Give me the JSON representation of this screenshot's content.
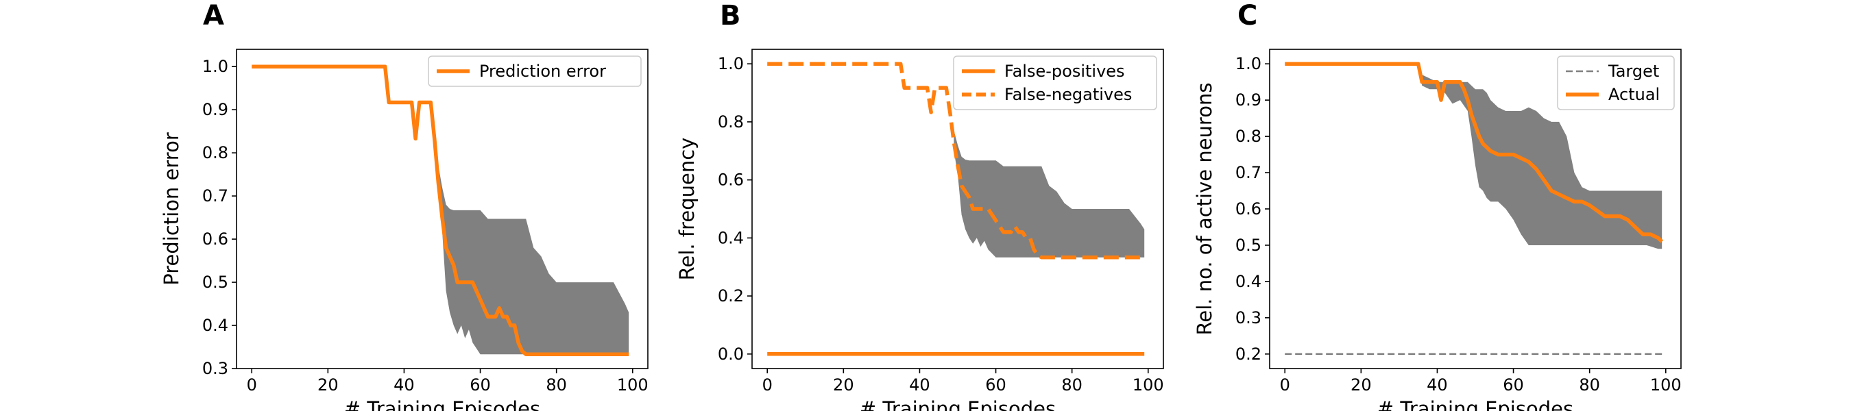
{
  "colors": {
    "line": "#ff7f0e",
    "band": "#808080",
    "target": "#808080",
    "legend_edge": "#cccccc"
  },
  "chart_data": [
    {
      "panel_label": "A",
      "type": "line",
      "xlabel": "# Training Episodes",
      "ylabel": "Prediction error",
      "xlim": [
        -4,
        104
      ],
      "ylim": [
        0.3,
        1.04
      ],
      "xticks": [
        "0",
        "20",
        "40",
        "60",
        "80",
        "100"
      ],
      "yticks": [
        "0.3",
        "0.4",
        "0.5",
        "0.6",
        "0.7",
        "0.8",
        "0.9",
        "1.0"
      ],
      "legend_position": "top-right",
      "band": {
        "x": [
          49,
          50,
          51,
          52,
          53,
          54,
          55,
          56,
          57,
          58,
          60,
          62,
          64,
          66,
          68,
          70,
          72,
          74,
          76,
          78,
          80,
          85,
          90,
          95,
          98,
          99
        ],
        "upper": [
          0.77,
          0.72,
          0.68,
          0.67,
          0.667,
          0.667,
          0.667,
          0.667,
          0.667,
          0.667,
          0.667,
          0.647,
          0.647,
          0.647,
          0.647,
          0.647,
          0.647,
          0.58,
          0.56,
          0.52,
          0.5,
          0.5,
          0.5,
          0.5,
          0.45,
          0.43
        ],
        "lower": [
          0.7,
          0.62,
          0.48,
          0.43,
          0.4,
          0.38,
          0.4,
          0.37,
          0.39,
          0.36,
          0.333,
          0.333,
          0.333,
          0.333,
          0.333,
          0.333,
          0.333,
          0.333,
          0.333,
          0.333,
          0.333,
          0.333,
          0.333,
          0.333,
          0.333,
          0.333
        ]
      },
      "series": [
        {
          "name": "Prediction error",
          "style": "solid",
          "x": [
            0,
            35,
            36,
            42,
            43,
            44,
            46,
            47,
            48,
            49,
            50,
            51,
            52,
            53,
            54,
            56,
            57,
            58,
            60,
            61,
            62,
            63,
            64,
            65,
            66,
            67,
            68,
            69,
            70,
            71,
            72,
            80,
            90,
            99
          ],
          "y": [
            1.0,
            1.0,
            0.917,
            0.917,
            0.833,
            0.917,
            0.917,
            0.917,
            0.83,
            0.73,
            0.65,
            0.58,
            0.56,
            0.54,
            0.5,
            0.5,
            0.5,
            0.5,
            0.46,
            0.44,
            0.42,
            0.42,
            0.42,
            0.44,
            0.42,
            0.42,
            0.4,
            0.4,
            0.36,
            0.34,
            0.333,
            0.333,
            0.333,
            0.333
          ]
        }
      ]
    },
    {
      "panel_label": "B",
      "type": "line",
      "xlabel": "# Training Episodes",
      "ylabel": "Rel. frequency",
      "xlim": [
        -4,
        104
      ],
      "ylim": [
        -0.05,
        1.05
      ],
      "xticks": [
        "0",
        "20",
        "40",
        "60",
        "80",
        "100"
      ],
      "yticks": [
        "0.0",
        "0.2",
        "0.4",
        "0.6",
        "0.8",
        "1.0"
      ],
      "legend_position": "top-right",
      "band": {
        "x": [
          49,
          50,
          51,
          52,
          53,
          54,
          55,
          56,
          57,
          58,
          60,
          62,
          64,
          66,
          68,
          70,
          72,
          74,
          76,
          78,
          80,
          85,
          90,
          95,
          98,
          99
        ],
        "upper": [
          0.77,
          0.72,
          0.68,
          0.67,
          0.667,
          0.667,
          0.667,
          0.667,
          0.667,
          0.667,
          0.667,
          0.647,
          0.647,
          0.647,
          0.647,
          0.647,
          0.647,
          0.58,
          0.56,
          0.52,
          0.5,
          0.5,
          0.5,
          0.5,
          0.45,
          0.43
        ],
        "lower": [
          0.7,
          0.62,
          0.48,
          0.43,
          0.4,
          0.38,
          0.4,
          0.37,
          0.39,
          0.36,
          0.333,
          0.333,
          0.333,
          0.333,
          0.333,
          0.333,
          0.333,
          0.333,
          0.333,
          0.333,
          0.333,
          0.333,
          0.333,
          0.333,
          0.333,
          0.333
        ]
      },
      "series": [
        {
          "name": "False-positives",
          "style": "solid",
          "x": [
            0,
            99
          ],
          "y": [
            0.0,
            0.0
          ]
        },
        {
          "name": "False-negatives",
          "style": "dashed",
          "x": [
            0,
            35,
            36,
            42,
            43,
            44,
            46,
            47,
            48,
            49,
            50,
            51,
            52,
            53,
            54,
            56,
            57,
            58,
            60,
            61,
            62,
            63,
            64,
            65,
            66,
            67,
            68,
            69,
            70,
            71,
            72,
            80,
            90,
            99
          ],
          "y": [
            1.0,
            1.0,
            0.917,
            0.917,
            0.833,
            0.917,
            0.917,
            0.917,
            0.83,
            0.73,
            0.65,
            0.58,
            0.56,
            0.54,
            0.5,
            0.5,
            0.5,
            0.5,
            0.46,
            0.44,
            0.42,
            0.42,
            0.42,
            0.44,
            0.42,
            0.42,
            0.4,
            0.4,
            0.36,
            0.34,
            0.333,
            0.333,
            0.333,
            0.333
          ]
        }
      ]
    },
    {
      "panel_label": "C",
      "type": "line",
      "xlabel": "# Training Episodes",
      "ylabel": "Rel. no. of active neurons",
      "xlim": [
        -4,
        104
      ],
      "ylim": [
        0.16,
        1.04
      ],
      "xticks": [
        "0",
        "20",
        "40",
        "60",
        "80",
        "100"
      ],
      "yticks": [
        "0.2",
        "0.3",
        "0.4",
        "0.5",
        "0.6",
        "0.7",
        "0.8",
        "0.9",
        "1.0"
      ],
      "legend_position": "top-right",
      "band": {
        "x": [
          35,
          36,
          38,
          40,
          42,
          44,
          46,
          48,
          49,
          50,
          51,
          52,
          53,
          54,
          56,
          58,
          60,
          62,
          64,
          66,
          68,
          70,
          72,
          74,
          76,
          78,
          80,
          85,
          90,
          95,
          98,
          99
        ],
        "upper": [
          1.0,
          0.97,
          0.96,
          0.95,
          0.95,
          0.95,
          0.95,
          0.95,
          0.94,
          0.93,
          0.93,
          0.93,
          0.92,
          0.9,
          0.88,
          0.87,
          0.87,
          0.87,
          0.88,
          0.87,
          0.85,
          0.84,
          0.84,
          0.8,
          0.7,
          0.66,
          0.65,
          0.65,
          0.65,
          0.65,
          0.65,
          0.65
        ],
        "lower": [
          1.0,
          0.94,
          0.93,
          0.93,
          0.92,
          0.89,
          0.9,
          0.87,
          0.8,
          0.72,
          0.66,
          0.65,
          0.63,
          0.62,
          0.62,
          0.6,
          0.57,
          0.53,
          0.5,
          0.5,
          0.5,
          0.5,
          0.5,
          0.5,
          0.5,
          0.5,
          0.5,
          0.5,
          0.5,
          0.5,
          0.49,
          0.49
        ]
      },
      "series": [
        {
          "name": "Target",
          "style": "target-dashed",
          "x": [
            0,
            99
          ],
          "y": [
            0.2,
            0.2
          ]
        },
        {
          "name": "Actual",
          "style": "solid",
          "x": [
            0,
            35,
            36,
            38,
            40,
            41,
            42,
            44,
            46,
            47,
            48,
            49,
            50,
            51,
            52,
            54,
            56,
            58,
            60,
            62,
            64,
            66,
            68,
            70,
            72,
            74,
            76,
            78,
            80,
            84,
            86,
            88,
            90,
            94,
            96,
            98,
            99
          ],
          "y": [
            1.0,
            1.0,
            0.95,
            0.95,
            0.95,
            0.9,
            0.95,
            0.95,
            0.95,
            0.93,
            0.9,
            0.86,
            0.83,
            0.8,
            0.78,
            0.76,
            0.75,
            0.75,
            0.75,
            0.74,
            0.73,
            0.71,
            0.68,
            0.65,
            0.64,
            0.63,
            0.62,
            0.62,
            0.61,
            0.58,
            0.58,
            0.58,
            0.57,
            0.53,
            0.53,
            0.52,
            0.51
          ]
        }
      ]
    }
  ]
}
